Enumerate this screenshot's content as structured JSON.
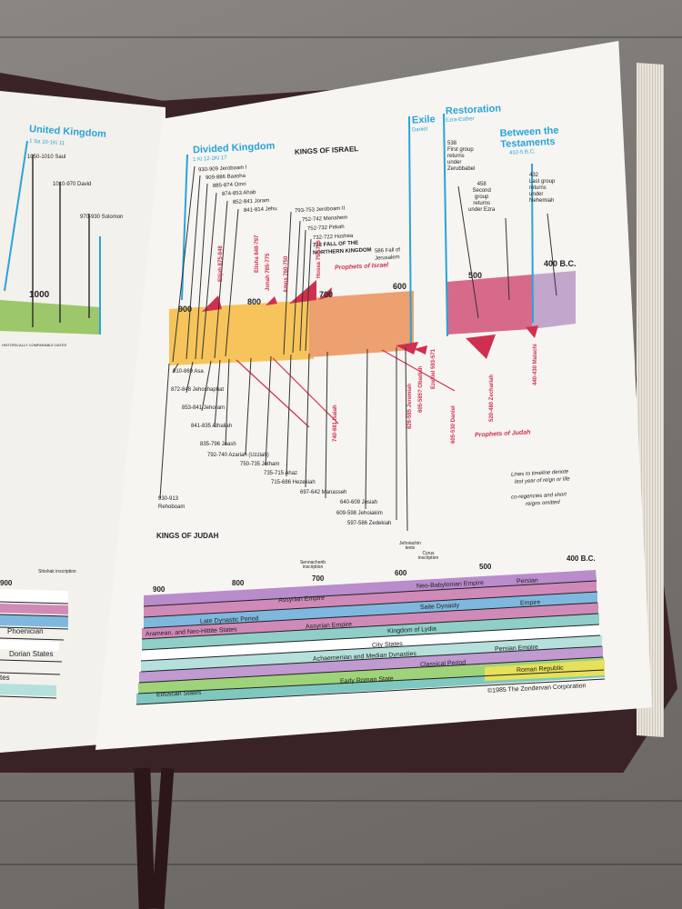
{
  "left_page": {
    "era": "United Kingdom",
    "ref": "1 Sa 10-1Ki 11",
    "kings": [
      "1050-1010 Saul",
      "1010-970 David",
      "970-930 Solomon"
    ],
    "year": "1000",
    "note": "HISTORICALLY COMPARABLE DATES",
    "inscription": "Shishak inscription",
    "year2": "900",
    "bands": [
      "Phoenician",
      "Dorian States",
      "tes"
    ]
  },
  "right_page": {
    "eras": {
      "divided": "Divided Kingdom",
      "divided_ref": "1 Ki 12-2Ki 17",
      "exile": "Exile",
      "exile_ref": "Daniel",
      "restoration": "Restoration",
      "restoration_ref": "Ezra-Esther",
      "between": "Between the Testaments",
      "between_ref": "432-5 B.C."
    },
    "kings_of_israel_title": "KINGS OF ISRAEL",
    "israel_kings": [
      "930-909 Jeroboam I",
      "909-886 Baasha",
      "885-874 Omri",
      "874-853 Ahab",
      "852-841 Joram",
      "841-814 Jehu",
      "793-753 Jeroboam II",
      "752-742 Menahem",
      "752-732 Pekah",
      "732-722 Hoshea",
      "722 FALL OF THE",
      "NORTHERN KINGDOM",
      "586 Fall of",
      "Jerusalem"
    ],
    "restoration_notes": [
      "538",
      "First group",
      "returns",
      "under",
      "Zerubbabel",
      "458",
      "Second",
      "group",
      "returns",
      "under Ezra",
      "432",
      "Last group",
      "returns",
      "under",
      "Nehemiah"
    ],
    "years": [
      "900",
      "800",
      "700",
      "600",
      "500",
      "400 B.C."
    ],
    "prophets_israel": [
      "Elijah 875-848",
      "Elisha 848-797",
      "Jonah 785-775",
      "Amos 760-750",
      "Hosea 750-715",
      "Prophets of Israel"
    ],
    "prophets_judah": [
      "740-681 Isaiah",
      "626-585 Jeremiah",
      "605-585? Obadiah",
      "Ezekiel 593-571",
      "605-530 Daniel",
      "520-480 Zechariah",
      "440-430 Malachi",
      "Prophets of Judah"
    ],
    "judah_kings": [
      "910-869 Asa",
      "872-848 Jehoshaphat",
      "853-841 Jehoram",
      "841-835 Athaliah",
      "835-796 Joash",
      "792-740 Azariah (Uzziah)",
      "750-735 Jotham",
      "735-715 Ahaz",
      "715-686 Hezekiah",
      "697-642 Manasseh",
      "640-609 Josiah",
      "609-598 Jehoiakim",
      "597-586 Zedekiah",
      "930-913",
      "Rehoboam"
    ],
    "notes": [
      "Lines to timeline denote",
      "last year of reign or life",
      "co-regencies and short",
      "reigns omitted"
    ],
    "kings_of_judah_title": "KINGS OF JUDAH",
    "inscriptions": [
      "Sennacherib inscription",
      "Jehoiachin texts",
      "Cyrus inscription"
    ],
    "bottom_years": [
      "900",
      "800",
      "700",
      "600",
      "500",
      "400 B.C."
    ],
    "empires": [
      "Assyrian Empire",
      "Neo-Babylonian Empire",
      "Persian",
      "Saite Dynasty",
      "Empire",
      "Late Dynastic Period",
      "Aramean, and Neo-Hittite States",
      "Assyrian Empire",
      "Kingdom of Lydia",
      "City States",
      "Achaemenian and Median Dynasties",
      "Persian Empire",
      "Classical Period",
      "Early Roman State",
      "Roman Republic",
      "Etruscan States"
    ],
    "copyright": "©1985 The Zondervan Corporation"
  },
  "colors": {
    "accent_blue": "#2aa3d8",
    "prophet_red": "#d0304f",
    "band_yellow": "#f6c45a",
    "band_orange": "#eda070",
    "band_pink": "#d76a8a",
    "band_lavender": "#c2a6cc",
    "band_green": "#8cc76b",
    "band_teal": "#7fc8c0",
    "band_purple": "#b98ccc",
    "band_blue": "#7fb8de"
  }
}
